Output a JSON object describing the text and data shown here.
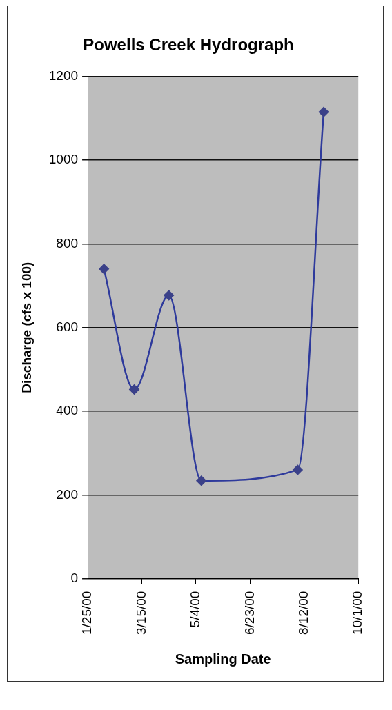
{
  "chart_data": {
    "type": "line",
    "title": "Powells Creek Hydrograph",
    "xlabel": "Sampling Date",
    "ylabel": "Discharge (cfs x 100)",
    "x": [
      "2000-02-09",
      "2000-03-08",
      "2000-04-09",
      "2000-05-09",
      "2000-08-06",
      "2000-08-30"
    ],
    "series": [
      {
        "color": "#2e3a9c",
        "values": [
          740,
          452,
          677,
          234,
          260,
          1115
        ]
      }
    ],
    "xlim": [
      "2000-01-25",
      "2000-10-01"
    ],
    "xticks": [
      {
        "value": "2000-01-25",
        "label": "1/25/00"
      },
      {
        "value": "2000-03-15",
        "label": "3/15/00"
      },
      {
        "value": "2000-05-04",
        "label": "5/4/00"
      },
      {
        "value": "2000-06-23",
        "label": "6/23/00"
      },
      {
        "value": "2000-08-12",
        "label": "8/12/00"
      },
      {
        "value": "2000-10-01",
        "label": "10/1/00"
      }
    ],
    "ylim": [
      0,
      1200
    ],
    "yticks": [
      0,
      200,
      400,
      600,
      800,
      1000,
      1200
    ],
    "grid": "y",
    "legend": false,
    "marker": "diamond",
    "line_style": "solid"
  }
}
